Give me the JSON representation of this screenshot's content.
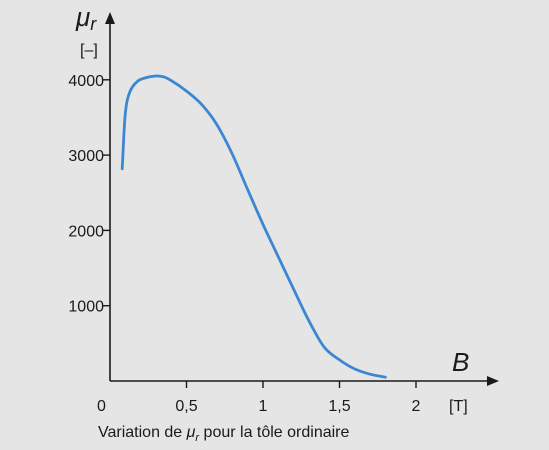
{
  "chart_data": {
    "type": "line",
    "caption_before": "Variation de ",
    "caption_symbol": "μ",
    "caption_sub": "r",
    "caption_after": " pour la tôle ordinaire",
    "y_symbol": "μ",
    "y_symbol_sub": "r",
    "y_unit": "[–]",
    "x_symbol": "B",
    "x_unit": "[T]",
    "origin_label": "0",
    "x_ticks": [
      {
        "value": 0.5,
        "label": "0,5"
      },
      {
        "value": 1,
        "label": "1"
      },
      {
        "value": 1.5,
        "label": "1,5"
      },
      {
        "value": 2,
        "label": "2"
      }
    ],
    "y_ticks": [
      {
        "value": 1000,
        "label": "1000"
      },
      {
        "value": 2000,
        "label": "2000"
      },
      {
        "value": 3000,
        "label": "3000"
      },
      {
        "value": 4000,
        "label": "4000"
      }
    ],
    "xlim": [
      0,
      2.4
    ],
    "ylim": [
      0,
      4700
    ],
    "grid": false,
    "series": [
      {
        "color": "#3a87d4",
        "x": [
          0.08,
          0.1,
          0.13,
          0.18,
          0.24,
          0.3,
          0.35,
          0.4,
          0.5,
          0.6,
          0.7,
          0.8,
          0.9,
          1.0,
          1.1,
          1.2,
          1.3,
          1.4,
          1.5,
          1.6,
          1.7,
          1.8
        ],
        "y": [
          2820,
          3550,
          3840,
          3980,
          4030,
          4050,
          4040,
          3990,
          3850,
          3670,
          3400,
          3010,
          2540,
          2080,
          1650,
          1220,
          800,
          450,
          280,
          160,
          90,
          50
        ]
      }
    ]
  }
}
